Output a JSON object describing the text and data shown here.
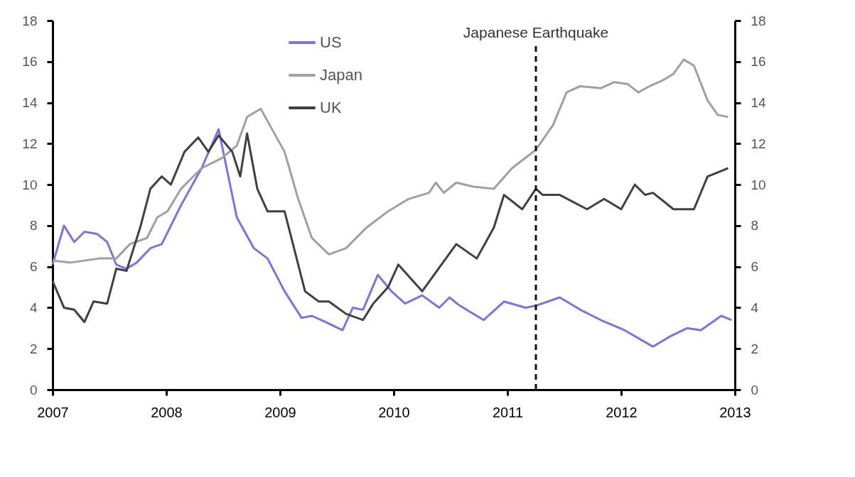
{
  "chart_data": {
    "type": "line",
    "xlim": [
      2007,
      2013
    ],
    "xticks": [
      2007,
      2008,
      2009,
      2010,
      2011,
      2012,
      2013
    ],
    "ylim": [
      0,
      18
    ],
    "yticks": [
      0,
      2,
      4,
      6,
      8,
      10,
      12,
      14,
      16,
      18
    ],
    "y2lim": [
      0,
      18
    ],
    "y2ticks": [
      0,
      2,
      4,
      6,
      8,
      10,
      12,
      14,
      16,
      18
    ],
    "legend": "top",
    "grid": false,
    "line_style": "solid",
    "marker": "none",
    "ref_lines": [
      {
        "axis": "x",
        "value": 2011.25,
        "label": "Japanese Earthquake",
        "line_style": "dashed",
        "color": "#111111"
      }
    ],
    "series": [
      {
        "name": "US",
        "color": "#7b74e0",
        "x": [
          2007.0,
          2007.1,
          2007.19,
          2007.28,
          2007.39,
          2007.48,
          2007.56,
          2007.65,
          2007.74,
          2007.86,
          2007.96,
          2008.13,
          2008.31,
          2008.46,
          2008.62,
          2008.77,
          2008.89,
          2009.04,
          2009.19,
          2009.28,
          2009.4,
          2009.55,
          2009.64,
          2009.73,
          2009.86,
          2009.98,
          2010.1,
          2010.25,
          2010.4,
          2010.49,
          2010.58,
          2010.79,
          2010.97,
          2011.16,
          2011.25,
          2011.46,
          2011.64,
          2011.82,
          2012.03,
          2012.28,
          2012.37,
          2012.43,
          2012.58,
          2012.7,
          2012.88,
          2012.97
        ],
        "values": [
          6.1,
          8.0,
          7.2,
          7.7,
          7.6,
          7.2,
          6.1,
          5.9,
          6.2,
          6.9,
          7.1,
          9.0,
          10.8,
          12.7,
          8.4,
          6.9,
          6.4,
          4.8,
          3.5,
          3.6,
          3.3,
          2.9,
          4.0,
          3.9,
          5.6,
          4.8,
          4.2,
          4.6,
          4.0,
          4.5,
          4.1,
          3.4,
          4.3,
          4.0,
          4.1,
          4.5,
          3.9,
          3.4,
          2.9,
          2.1,
          2.4,
          2.6,
          3.0,
          2.9,
          3.6,
          3.4
        ]
      },
      {
        "name": "Japan",
        "color": "#a0a0a0",
        "x": [
          2007.0,
          2007.16,
          2007.41,
          2007.56,
          2007.68,
          2007.83,
          2007.92,
          2008.01,
          2008.13,
          2008.31,
          2008.49,
          2008.62,
          2008.71,
          2008.83,
          2008.95,
          2009.04,
          2009.16,
          2009.28,
          2009.43,
          2009.58,
          2009.76,
          2009.95,
          2010.13,
          2010.31,
          2010.37,
          2010.44,
          2010.55,
          2010.7,
          2010.88,
          2011.04,
          2011.25,
          2011.4,
          2011.52,
          2011.64,
          2011.82,
          2011.94,
          2012.06,
          2012.15,
          2012.25,
          2012.37,
          2012.46,
          2012.55,
          2012.64,
          2012.76,
          2012.85,
          2012.94
        ],
        "values": [
          6.3,
          6.2,
          6.4,
          6.4,
          7.1,
          7.4,
          8.4,
          8.7,
          9.8,
          10.8,
          11.3,
          11.9,
          13.3,
          13.7,
          12.5,
          11.6,
          9.3,
          7.4,
          6.6,
          6.9,
          7.9,
          8.7,
          9.3,
          9.6,
          10.1,
          9.6,
          10.1,
          9.9,
          9.8,
          10.8,
          11.7,
          12.9,
          14.5,
          14.8,
          14.7,
          15.0,
          14.9,
          14.5,
          14.8,
          15.1,
          15.4,
          16.1,
          15.8,
          14.1,
          13.4,
          13.3
        ]
      },
      {
        "name": "UK",
        "color": "#404040",
        "x": [
          2007.0,
          2007.1,
          2007.19,
          2007.28,
          2007.36,
          2007.48,
          2007.56,
          2007.65,
          2007.77,
          2007.86,
          2007.96,
          2008.04,
          2008.16,
          2008.28,
          2008.37,
          2008.46,
          2008.58,
          2008.65,
          2008.71,
          2008.8,
          2008.89,
          2009.04,
          2009.22,
          2009.34,
          2009.43,
          2009.58,
          2009.73,
          2009.82,
          2009.95,
          2010.04,
          2010.25,
          2010.55,
          2010.73,
          2010.88,
          2010.97,
          2011.13,
          2011.25,
          2011.31,
          2011.46,
          2011.7,
          2011.85,
          2012.0,
          2012.12,
          2012.21,
          2012.28,
          2012.46,
          2012.64,
          2012.76,
          2012.94
        ],
        "values": [
          5.3,
          4.0,
          3.9,
          3.3,
          4.3,
          4.2,
          5.9,
          5.8,
          7.9,
          9.8,
          10.4,
          10.0,
          11.6,
          12.3,
          11.6,
          12.4,
          11.6,
          10.4,
          12.5,
          9.8,
          8.7,
          8.7,
          4.8,
          4.3,
          4.3,
          3.7,
          3.4,
          4.2,
          5.0,
          6.1,
          4.8,
          7.1,
          6.4,
          7.9,
          9.5,
          8.8,
          9.8,
          9.5,
          9.5,
          8.8,
          9.3,
          8.8,
          10.0,
          9.5,
          9.6,
          8.8,
          8.8,
          10.4,
          10.8
        ]
      }
    ]
  }
}
